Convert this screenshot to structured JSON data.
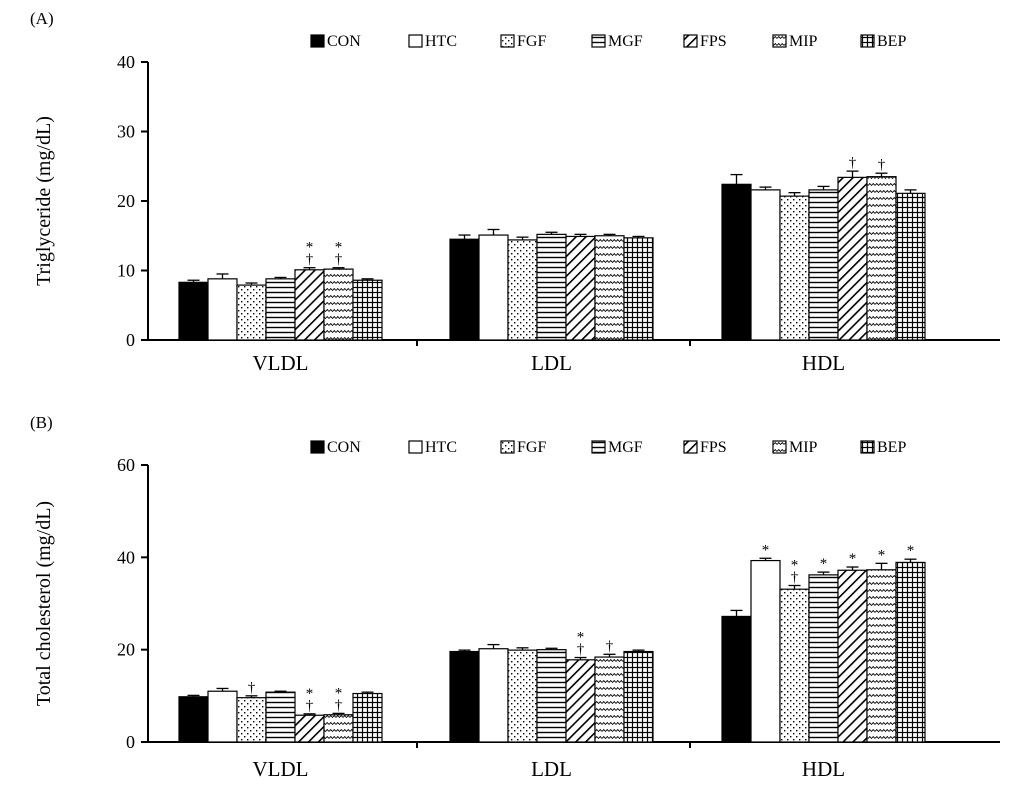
{
  "series_names": [
    "CON",
    "HTC",
    "FGF",
    "MGF",
    "FPS",
    "MIP",
    "BEP"
  ],
  "categories": [
    "VLDL",
    "LDL",
    "HDL"
  ],
  "chart_data": [
    {
      "type": "bar",
      "panel_label": "(A)",
      "ylabel": "Triglyceride (mg/dL)",
      "ylim": [
        0,
        40
      ],
      "yticks": [
        0,
        10,
        20,
        30,
        40
      ],
      "categories": [
        "VLDL",
        "LDL",
        "HDL"
      ],
      "legend_position": "top-right",
      "series": [
        {
          "name": "CON",
          "values": [
            8.3,
            14.5,
            22.4
          ],
          "errors": [
            0.3,
            0.6,
            1.4
          ],
          "marks": [
            "",
            "",
            ""
          ]
        },
        {
          "name": "HTC",
          "values": [
            8.8,
            15.1,
            21.6
          ],
          "errors": [
            0.7,
            0.8,
            0.4
          ],
          "marks": [
            "",
            "",
            ""
          ]
        },
        {
          "name": "FGF",
          "values": [
            7.9,
            14.4,
            20.7
          ],
          "errors": [
            0.3,
            0.4,
            0.5
          ],
          "marks": [
            "",
            "",
            ""
          ]
        },
        {
          "name": "MGF",
          "values": [
            8.8,
            15.2,
            21.6
          ],
          "errors": [
            0.2,
            0.3,
            0.5
          ],
          "marks": [
            "",
            "",
            ""
          ]
        },
        {
          "name": "FPS",
          "values": [
            10.1,
            14.9,
            23.4
          ],
          "errors": [
            0.3,
            0.3,
            0.9
          ],
          "marks": [
            "*\n†",
            "",
            "†"
          ]
        },
        {
          "name": "MIP",
          "values": [
            10.2,
            15.0,
            23.5
          ],
          "errors": [
            0.2,
            0.2,
            0.5
          ],
          "marks": [
            "*\n†",
            "",
            "†"
          ]
        },
        {
          "name": "BEP",
          "values": [
            8.6,
            14.7,
            21.1
          ],
          "errors": [
            0.2,
            0.2,
            0.5
          ],
          "marks": [
            "",
            "",
            ""
          ]
        }
      ]
    },
    {
      "type": "bar",
      "panel_label": "(B)",
      "ylabel": "Total cholesterol (mg/dL)",
      "ylim": [
        0,
        60
      ],
      "yticks": [
        0,
        20,
        40,
        60
      ],
      "categories": [
        "VLDL",
        "LDL",
        "HDL"
      ],
      "legend_position": "top-right",
      "series": [
        {
          "name": "CON",
          "values": [
            9.8,
            19.6,
            27.2
          ],
          "errors": [
            0.3,
            0.3,
            1.3
          ],
          "marks": [
            "",
            "",
            ""
          ]
        },
        {
          "name": "HTC",
          "values": [
            11.0,
            20.2,
            39.3
          ],
          "errors": [
            0.6,
            0.9,
            0.5
          ],
          "marks": [
            "",
            "",
            "*"
          ]
        },
        {
          "name": "FGF",
          "values": [
            9.6,
            19.9,
            33.1
          ],
          "errors": [
            0.4,
            0.5,
            0.8
          ],
          "marks": [
            "†",
            "",
            "*\n†"
          ]
        },
        {
          "name": "MGF",
          "values": [
            10.8,
            20.0,
            36.2
          ],
          "errors": [
            0.2,
            0.3,
            0.6
          ],
          "marks": [
            "",
            "",
            "*"
          ]
        },
        {
          "name": "FPS",
          "values": [
            5.8,
            17.8,
            37.2
          ],
          "errors": [
            0.3,
            0.5,
            0.7
          ],
          "marks": [
            "*\n†",
            "*\n†",
            "*"
          ]
        },
        {
          "name": "MIP",
          "values": [
            5.9,
            18.4,
            37.3
          ],
          "errors": [
            0.3,
            0.6,
            1.4
          ],
          "marks": [
            "*\n†",
            "†",
            "*"
          ]
        },
        {
          "name": "BEP",
          "values": [
            10.5,
            19.6,
            38.9
          ],
          "errors": [
            0.3,
            0.3,
            0.7
          ],
          "marks": [
            "",
            "",
            "*"
          ]
        }
      ]
    }
  ]
}
